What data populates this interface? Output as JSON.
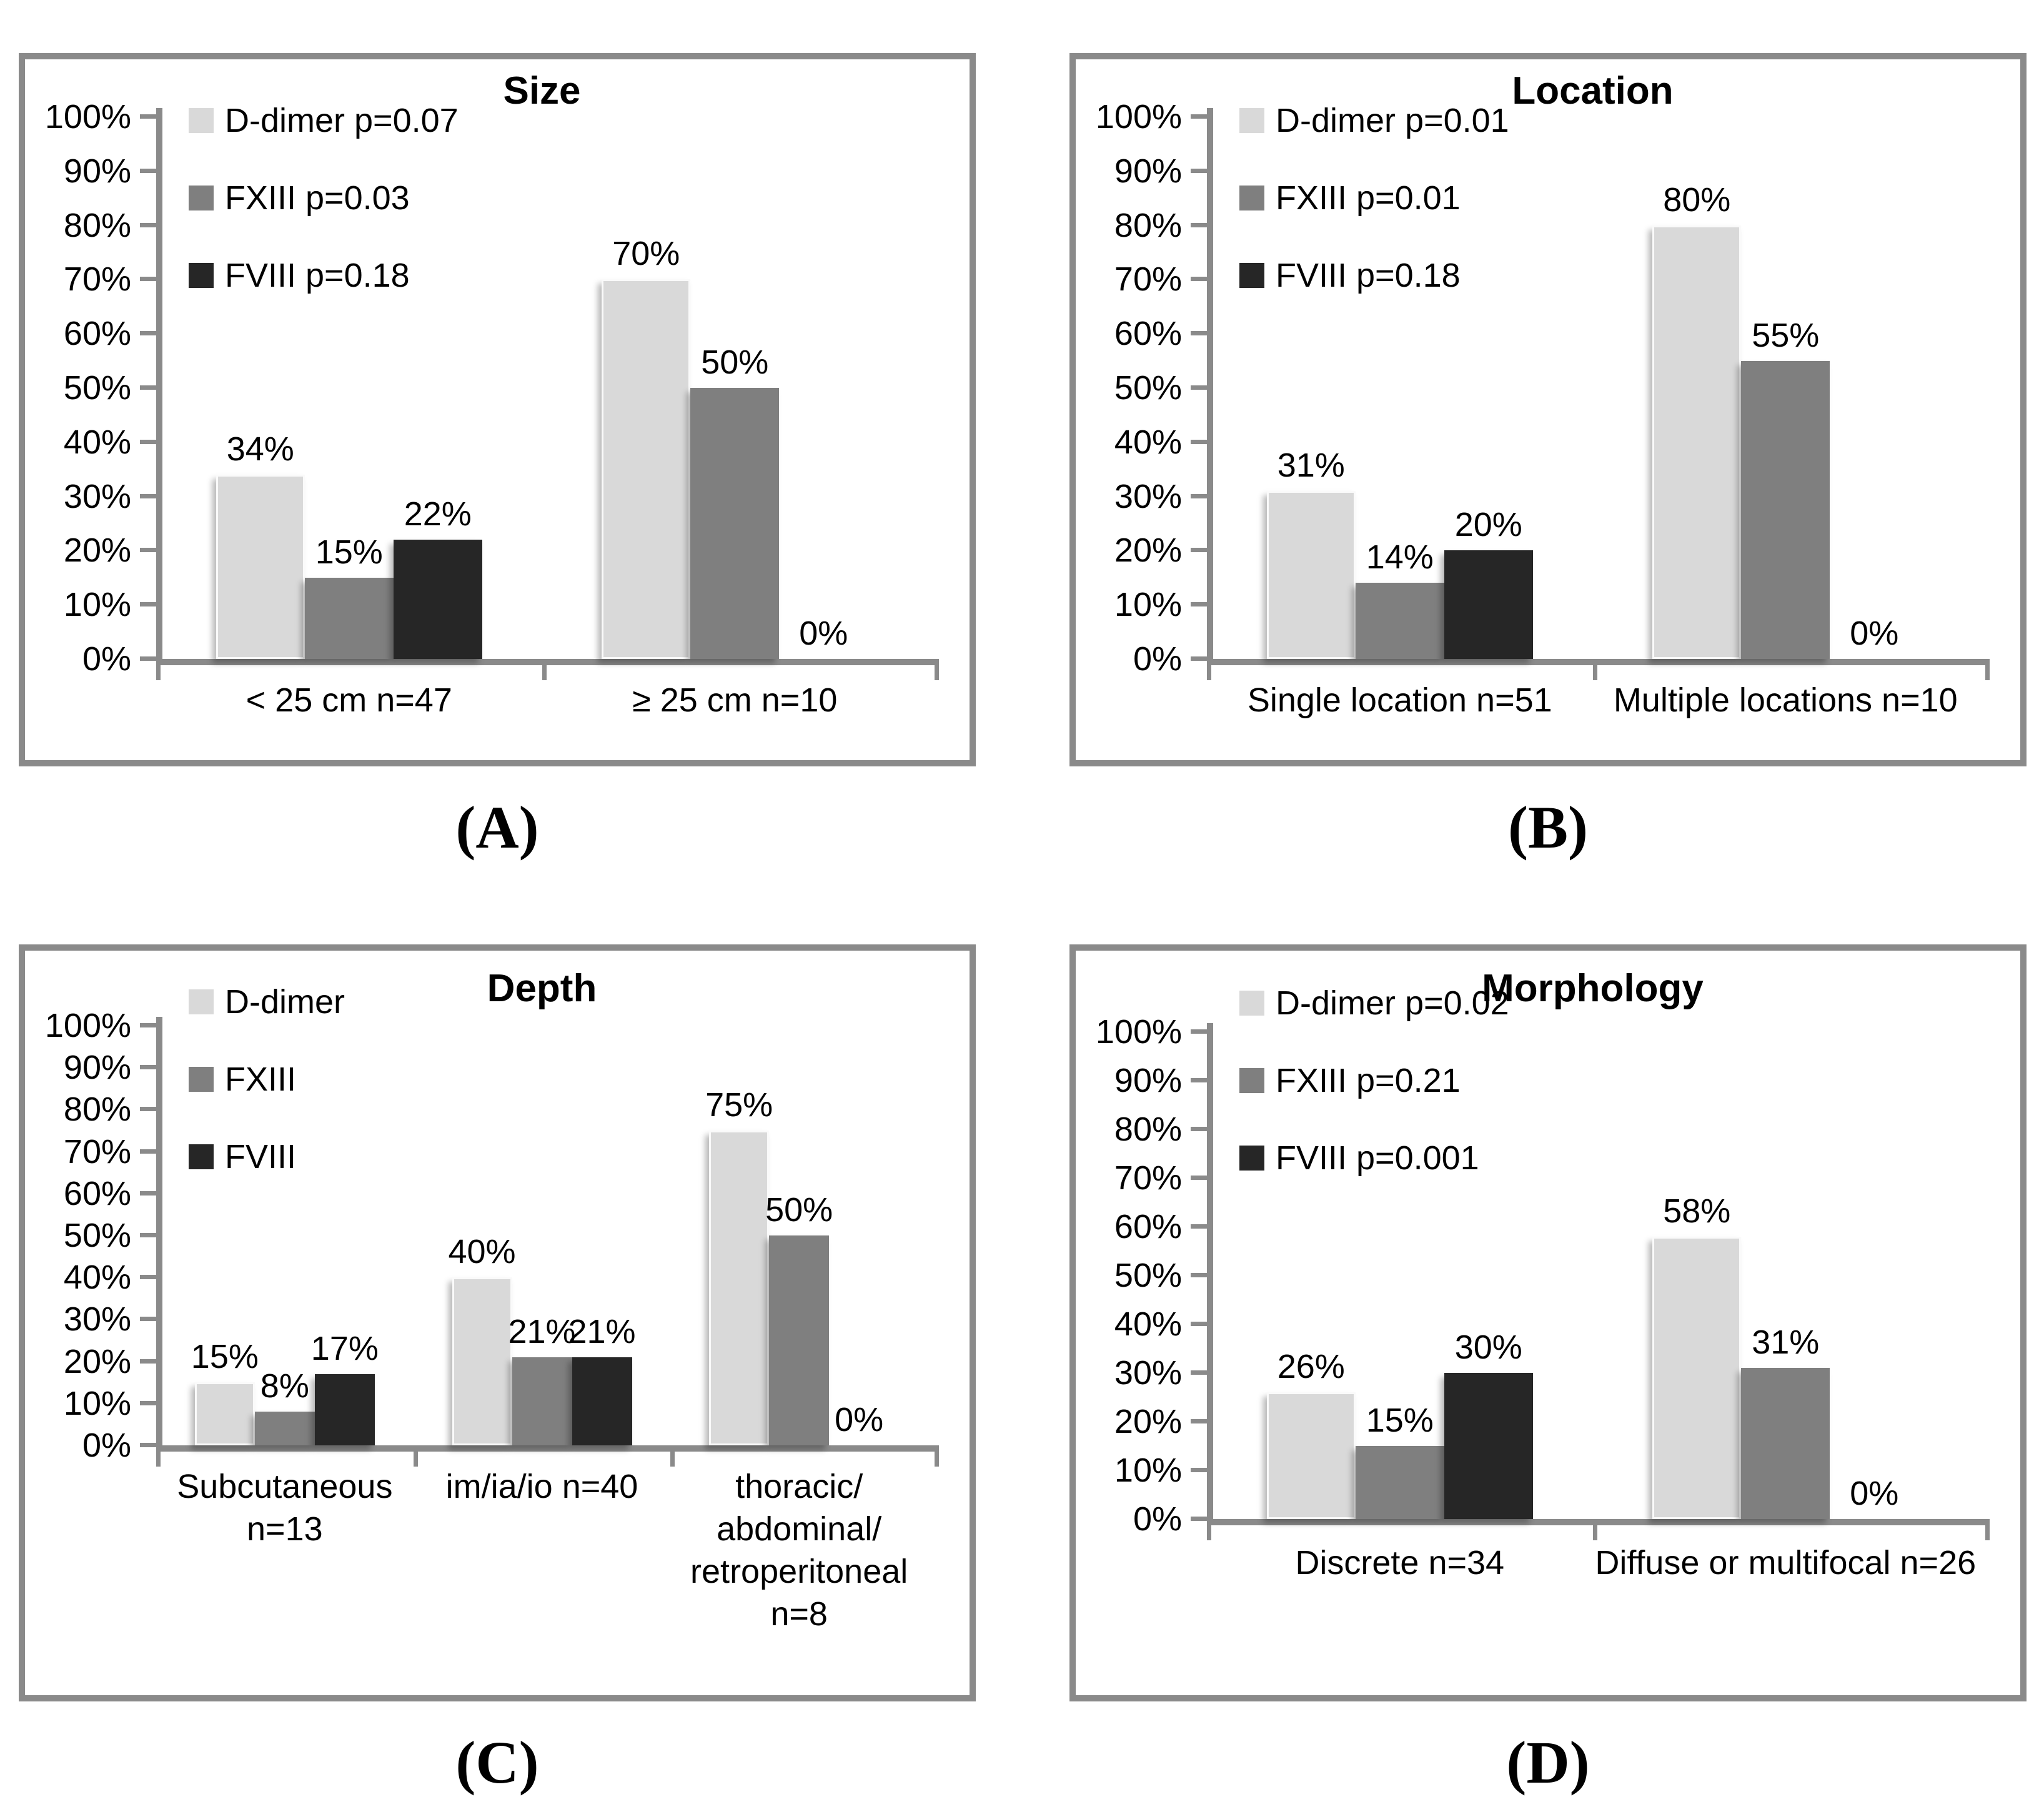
{
  "colors": {
    "d_dimer": "#d9d9d9",
    "fxiii": "#7f7f7f",
    "fviii": "#262626",
    "axis": "#8a8a8a",
    "panel_border": "#8a8a8a",
    "text": "#000000"
  },
  "chart_data": [
    {
      "type": "bar",
      "panel_label": "(A)",
      "title": "Size",
      "xlabel": "",
      "ylabel": "",
      "ylim": [
        0,
        100
      ],
      "grid": false,
      "legend_position": "upper-left",
      "ytick_labels": [
        "100%",
        "90%",
        "80%",
        "70%",
        "60%",
        "50%",
        "40%",
        "30%",
        "20%",
        "10%",
        "0%"
      ],
      "categories": [
        [
          "< 25 cm n=47"
        ],
        [
          "≥ 25 cm n=10"
        ]
      ],
      "series": [
        {
          "name": "D-dimer",
          "legend_label": "D-dimer p=0.07",
          "values": [
            34,
            70
          ]
        },
        {
          "name": "FXIII",
          "legend_label": "FXIII p=0.03",
          "values": [
            15,
            50
          ]
        },
        {
          "name": "FVIII",
          "legend_label": "FVIII p=0.18",
          "values": [
            22,
            0
          ]
        }
      ],
      "value_labels": [
        [
          "34%",
          "70%"
        ],
        [
          "15%",
          "50%"
        ],
        [
          "22%",
          "0%"
        ]
      ]
    },
    {
      "type": "bar",
      "panel_label": "(B)",
      "title": "Location",
      "xlabel": "",
      "ylabel": "",
      "ylim": [
        0,
        100
      ],
      "grid": false,
      "legend_position": "upper-left",
      "ytick_labels": [
        "100%",
        "90%",
        "80%",
        "70%",
        "60%",
        "50%",
        "40%",
        "30%",
        "20%",
        "10%",
        "0%"
      ],
      "categories": [
        [
          "Single location n=51"
        ],
        [
          "Multiple locations n=10"
        ]
      ],
      "series": [
        {
          "name": "D-dimer",
          "legend_label": "D-dimer p=0.01",
          "values": [
            31,
            80
          ]
        },
        {
          "name": "FXIII",
          "legend_label": "FXIII p=0.01",
          "values": [
            14,
            55
          ]
        },
        {
          "name": "FVIII",
          "legend_label": "FVIII p=0.18",
          "values": [
            20,
            0
          ]
        }
      ],
      "value_labels": [
        [
          "31%",
          "80%"
        ],
        [
          "14%",
          "55%"
        ],
        [
          "20%",
          "0%"
        ]
      ]
    },
    {
      "type": "bar",
      "panel_label": "(C)",
      "title": "Depth",
      "xlabel": "",
      "ylabel": "",
      "ylim": [
        0,
        100
      ],
      "grid": false,
      "legend_position": "upper-left",
      "ytick_labels": [
        "100%",
        "90%",
        "80%",
        "70%",
        "60%",
        "50%",
        "40%",
        "30%",
        "20%",
        "10%",
        "0%"
      ],
      "categories": [
        [
          "Subcutaneous",
          "n=13"
        ],
        [
          "im/ia/io n=40"
        ],
        [
          "thoracic/",
          "abdominal/",
          "retroperitoneal",
          "n=8"
        ]
      ],
      "series": [
        {
          "name": "D-dimer",
          "legend_label": "D-dimer",
          "values": [
            15,
            40,
            75
          ]
        },
        {
          "name": "FXIII",
          "legend_label": "FXIII",
          "values": [
            8,
            21,
            50
          ]
        },
        {
          "name": "FVIII",
          "legend_label": "FVIII",
          "values": [
            17,
            21,
            0
          ]
        }
      ],
      "value_labels": [
        [
          "15%",
          "40%",
          "75%"
        ],
        [
          "8%",
          "21%",
          "50%"
        ],
        [
          "17%",
          "21%",
          "0%"
        ]
      ]
    },
    {
      "type": "bar",
      "panel_label": "(D)",
      "title": "Morphology",
      "xlabel": "",
      "ylabel": "",
      "ylim": [
        0,
        100
      ],
      "grid": false,
      "legend_position": "upper-left",
      "ytick_labels": [
        "100%",
        "90%",
        "80%",
        "70%",
        "60%",
        "50%",
        "40%",
        "30%",
        "20%",
        "10%",
        "0%"
      ],
      "categories": [
        [
          "Discrete n=34"
        ],
        [
          "Diffuse or multifocal n=26"
        ]
      ],
      "series": [
        {
          "name": "D-dimer",
          "legend_label": "D-dimer p=0.02",
          "values": [
            26,
            58
          ]
        },
        {
          "name": "FXIII",
          "legend_label": "FXIII p=0.21",
          "values": [
            15,
            31
          ]
        },
        {
          "name": "FVIII",
          "legend_label": "FVIII p=0.001",
          "values": [
            30,
            0
          ]
        }
      ],
      "value_labels": [
        [
          "26%",
          "58%"
        ],
        [
          "15%",
          "31%"
        ],
        [
          "30%",
          "0%"
        ]
      ]
    }
  ]
}
